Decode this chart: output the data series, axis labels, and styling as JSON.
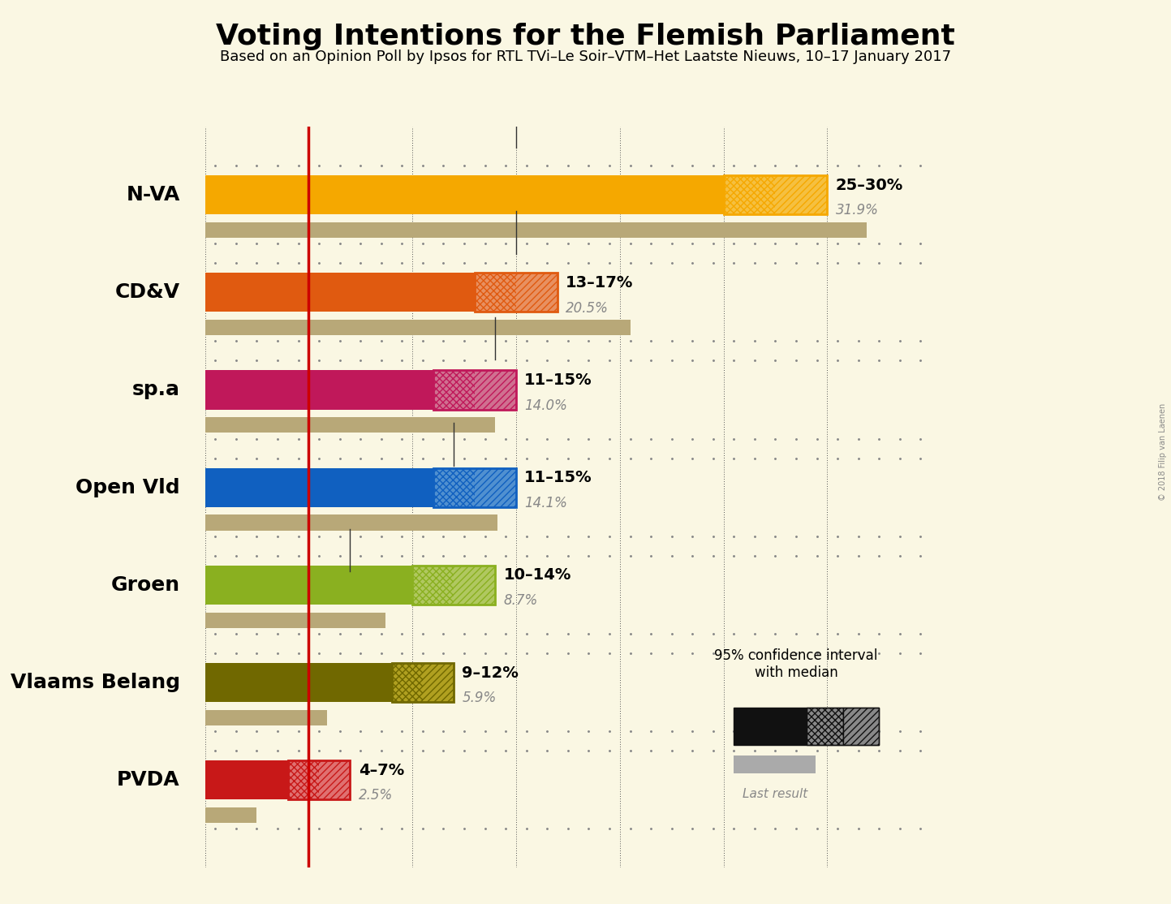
{
  "title": "Voting Intentions for the Flemish Parliament",
  "subtitle": "Based on an Opinion Poll by Ipsos for RTL TVi–Le Soir–VTM–Het Laatste Nieuws, 10–17 January 2017",
  "copyright": "© 2018 Filip van Laenen",
  "background_color": "#faf7e3",
  "parties": [
    "N-VA",
    "CD&V",
    "sp.a",
    "Open Vld",
    "Groen",
    "Vlaams Belang",
    "PVDA"
  ],
  "ci_low": [
    25,
    13,
    11,
    11,
    10,
    9,
    4
  ],
  "ci_high": [
    30,
    17,
    15,
    15,
    14,
    12,
    7
  ],
  "last_result": [
    31.9,
    20.5,
    14.0,
    14.1,
    8.7,
    5.9,
    2.5
  ],
  "ci_labels": [
    "25–30%",
    "13–17%",
    "11–15%",
    "11–15%",
    "10–14%",
    "9–12%",
    "4–7%"
  ],
  "last_labels": [
    "31.9%",
    "20.5%",
    "14.0%",
    "14.1%",
    "8.7%",
    "5.9%",
    "2.5%"
  ],
  "colors_main": [
    "#F5A800",
    "#E05A10",
    "#C0185A",
    "#1060C0",
    "#8AB020",
    "#706800",
    "#C81818"
  ],
  "colors_ci_bg": [
    "#F5C040",
    "#E89060",
    "#D07090",
    "#5090D0",
    "#B0C860",
    "#B0A020",
    "#E07070"
  ],
  "last_result_color": "#B8A878",
  "last_result_dot_color": "#C8B888",
  "red_line_x": 5.0,
  "xlim": [
    0,
    35
  ],
  "legend_ci_color": "#111111",
  "legend_last_color": "#AAAAAA"
}
